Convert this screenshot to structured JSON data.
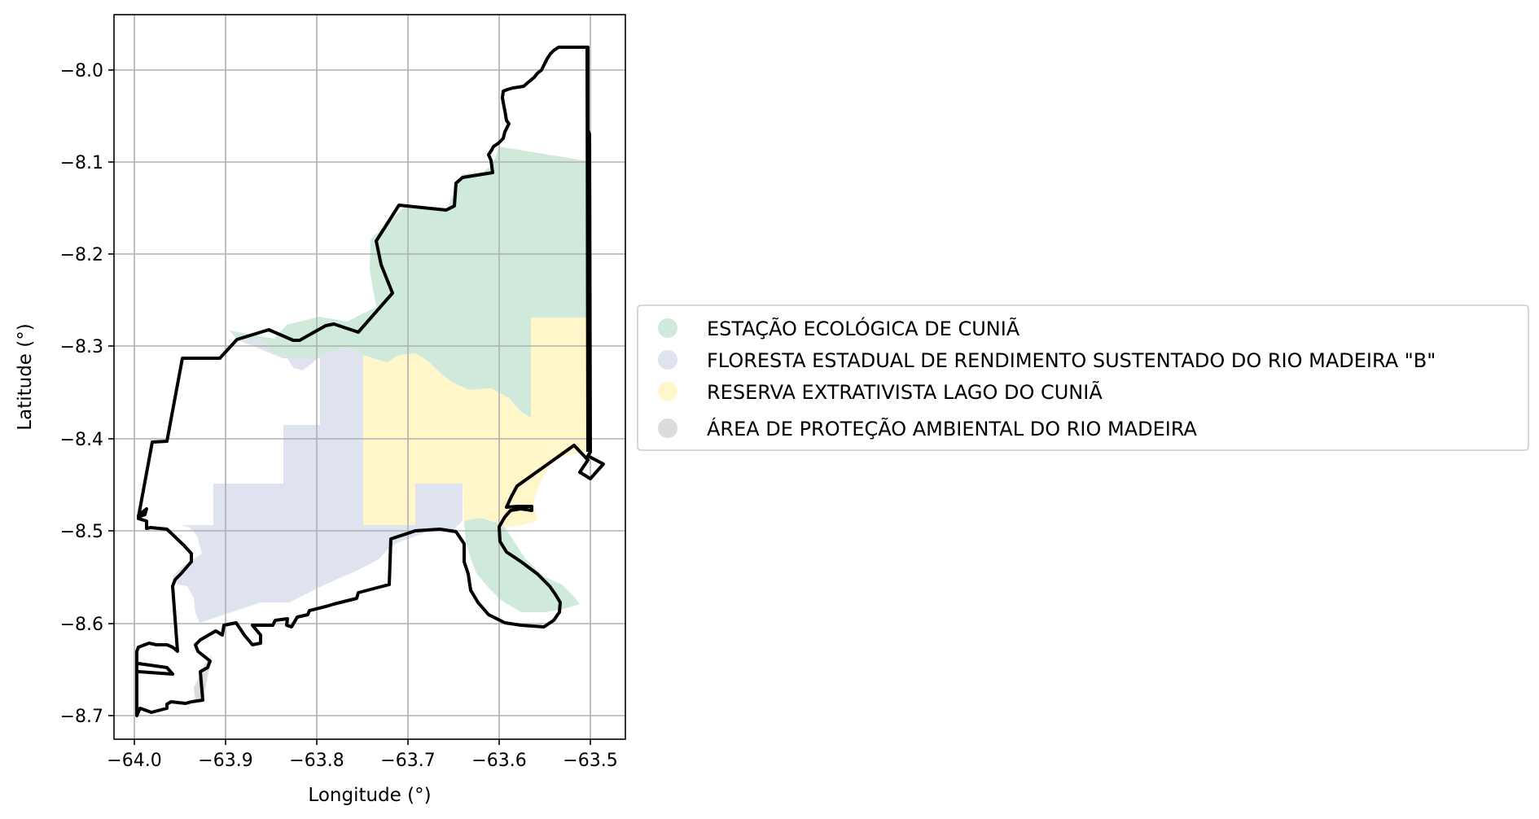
{
  "map": {
    "xlabel": "Longitude (°)",
    "ylabel": "Latitude (°)",
    "x_range": [
      -64.02,
      -63.46
    ],
    "y_range": [
      -8.73,
      -7.94
    ],
    "x_ticks": [
      "−64.0",
      "−63.9",
      "−63.8",
      "−63.7",
      "−63.6",
      "−63.5"
    ],
    "y_ticks": [
      "−8.0",
      "−8.1",
      "−8.2",
      "−8.3",
      "−8.4",
      "−8.5",
      "−8.6",
      "−8.7"
    ],
    "grid": true,
    "boundary_color": "#000000"
  },
  "legend": {
    "placement": "right-center",
    "items": [
      {
        "label": "ESTAÇÃO ECOLÓGICA DE CUNIÃ",
        "color": "#cfeadb"
      },
      {
        "label": "FLORESTA ESTADUAL DE RENDIMENTO SUSTENTADO DO RIO MADEIRA \"B\"",
        "color": "#dfe3f0"
      },
      {
        "label": "RESERVA EXTRATIVISTA LAGO DO CUNIÃ",
        "color": "#fff6c9"
      },
      {
        "label": "ÁREA DE PROTEÇÃO AMBIENTAL DO RIO MADEIRA",
        "color": "#dcdcdc"
      }
    ]
  }
}
